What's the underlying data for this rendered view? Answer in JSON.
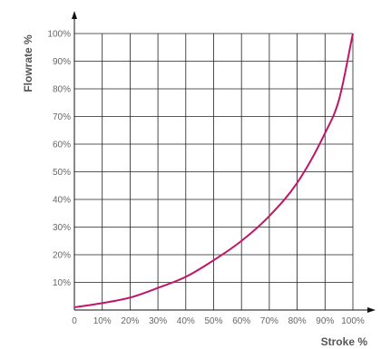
{
  "chart_data": {
    "type": "line",
    "title": "",
    "xlabel": "Stroke %",
    "ylabel": "Flowrate %",
    "xlim": [
      0,
      100
    ],
    "ylim": [
      0,
      100
    ],
    "grid": true,
    "x_tick_labels": [
      "0",
      "10%",
      "20%",
      "30%",
      "40%",
      "50%",
      "60%",
      "70%",
      "80%",
      "90%",
      "100%"
    ],
    "y_tick_labels": [
      "10%",
      "20%",
      "30%",
      "40%",
      "50%",
      "60%",
      "70%",
      "80%",
      "90%",
      "100%"
    ],
    "line_color": "#c0166a",
    "series": [
      {
        "x": [
          0,
          10,
          20,
          30,
          40,
          50,
          60,
          70,
          80,
          90,
          95,
          100
        ],
        "y": [
          1,
          2.5,
          4.5,
          8,
          12,
          18,
          25,
          34,
          46,
          64,
          76,
          100
        ]
      }
    ]
  }
}
